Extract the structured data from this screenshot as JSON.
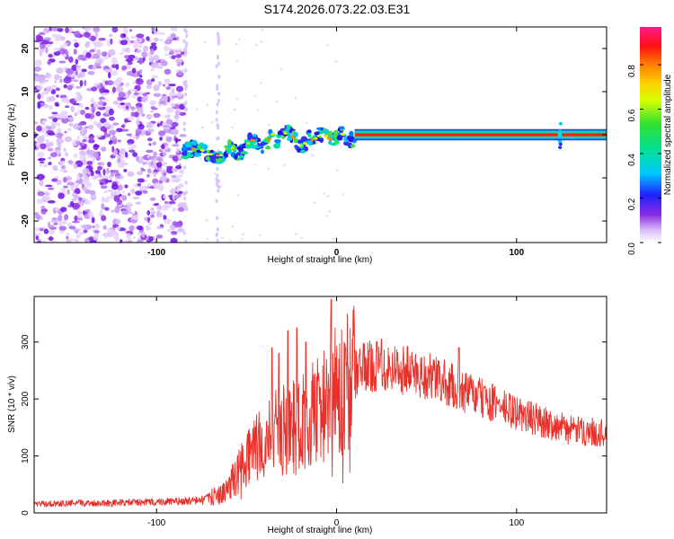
{
  "title": "S174.2026.073.22.03.E31",
  "colors": {
    "line": "#e8312a",
    "axis": "#000000",
    "tail": "#b060e8",
    "dots": "#7a20f0"
  },
  "chart_data": [
    {
      "type": "heatmap",
      "xlabel": "Height of straight line (km)",
      "ylabel": "Frequency (Hz)",
      "xlim": [
        -168,
        150
      ],
      "ylim": [
        -25,
        25
      ],
      "x_ticks": [
        -100,
        0,
        100
      ],
      "y_ticks": [
        -20,
        -10,
        0,
        10,
        20
      ],
      "colorbar": {
        "label": "Normalized spectral amplitude",
        "range": [
          0,
          0.97
        ],
        "ticks": [
          0.0,
          0.2,
          0.4,
          0.6,
          0.8
        ]
      },
      "features": {
        "noise_region_x": [
          -168,
          -85
        ],
        "signal_start_x": -85,
        "steady_tone_x": [
          10,
          150
        ],
        "steady_tone_freq_hz": 0,
        "spike_x": 124
      }
    },
    {
      "type": "line",
      "xlabel": "Height of straight line (km)",
      "ylabel": "SNR (10 * v/v)",
      "xlim": [
        -168,
        150
      ],
      "ylim": [
        0,
        380
      ],
      "x_ticks": [
        -100,
        0,
        100
      ],
      "y_ticks": [
        0,
        100,
        200,
        300
      ],
      "envelope_x": [
        -168,
        -120,
        -90,
        -75,
        -62,
        -55,
        -45,
        -35,
        -25,
        -15,
        -5,
        5,
        15,
        25,
        40,
        55,
        70,
        85,
        100,
        115,
        130,
        150
      ],
      "envelope_y": [
        16,
        18,
        20,
        22,
        35,
        70,
        110,
        140,
        150,
        170,
        200,
        230,
        255,
        260,
        250,
        235,
        215,
        195,
        175,
        160,
        145,
        140
      ],
      "spikes": [
        {
          "x": -36,
          "y": 290
        },
        {
          "x": -32,
          "y": 280
        },
        {
          "x": -27,
          "y": 320
        },
        {
          "x": -22,
          "y": 325
        },
        {
          "x": -17,
          "y": 300
        },
        {
          "x": -10,
          "y": 245
        },
        {
          "x": -3,
          "y": 375
        },
        {
          "x": 5,
          "y": 290
        },
        {
          "x": 25,
          "y": 305
        },
        {
          "x": 68,
          "y": 290
        }
      ]
    }
  ]
}
